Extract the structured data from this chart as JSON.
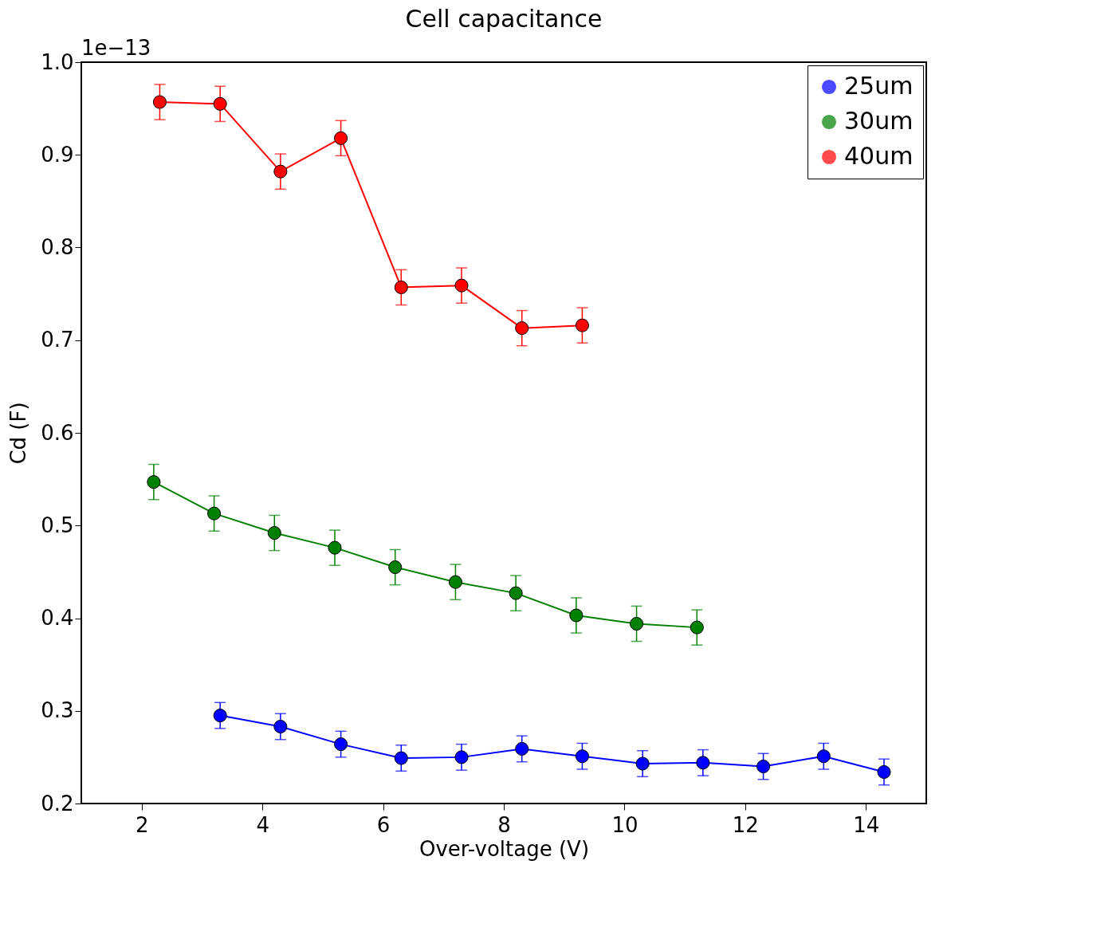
{
  "chart_data": {
    "type": "line",
    "title": "Cell capacitance",
    "xlabel": "Over-voltage (V)",
    "ylabel": "Cd (F)",
    "annotations": [
      "1e−13"
    ],
    "xlim": [
      1,
      15
    ],
    "xticks": [
      2,
      4,
      6,
      8,
      10,
      12,
      14
    ],
    "ylim": [
      0.2,
      1.0
    ],
    "yticks": [
      0.2,
      0.3,
      0.4,
      0.5,
      0.6,
      0.7,
      0.8,
      0.9,
      {
        "value": 1.0,
        "label": "1.0"
      }
    ],
    "grid": false,
    "legend": "top right",
    "marker": "circle",
    "line_style": "solid",
    "series": [
      {
        "name": "25um",
        "color": "#0000ff",
        "x": [
          3.3,
          4.3,
          5.3,
          6.3,
          7.3,
          8.3,
          9.3,
          10.3,
          11.3,
          12.3,
          13.3,
          14.3
        ],
        "values": [
          0.295,
          0.283,
          0.264,
          0.249,
          0.25,
          0.259,
          0.251,
          0.243,
          0.244,
          0.24,
          0.251,
          0.234
        ],
        "errors": [
          0.014,
          0.014,
          0.014,
          0.014,
          0.014,
          0.014,
          0.014,
          0.014,
          0.014,
          0.014,
          0.014,
          0.014
        ]
      },
      {
        "name": "30um",
        "color": "#008000",
        "x": [
          2.2,
          3.2,
          4.2,
          5.2,
          6.2,
          7.2,
          8.2,
          9.2,
          10.2,
          11.2
        ],
        "values": [
          0.547,
          0.513,
          0.492,
          0.476,
          0.455,
          0.439,
          0.427,
          0.403,
          0.394,
          0.39
        ],
        "errors": [
          0.019,
          0.019,
          0.019,
          0.019,
          0.019,
          0.019,
          0.019,
          0.019,
          0.019,
          0.019
        ]
      },
      {
        "name": "40um",
        "color": "#ff0000",
        "x": [
          2.3,
          3.3,
          4.3,
          5.3,
          6.3,
          7.3,
          8.3,
          9.3
        ],
        "values": [
          0.957,
          0.955,
          0.882,
          0.918,
          0.757,
          0.759,
          0.713,
          0.716
        ],
        "errors": [
          0.019,
          0.019,
          0.019,
          0.019,
          0.019,
          0.019,
          0.019,
          0.019
        ]
      }
    ]
  }
}
